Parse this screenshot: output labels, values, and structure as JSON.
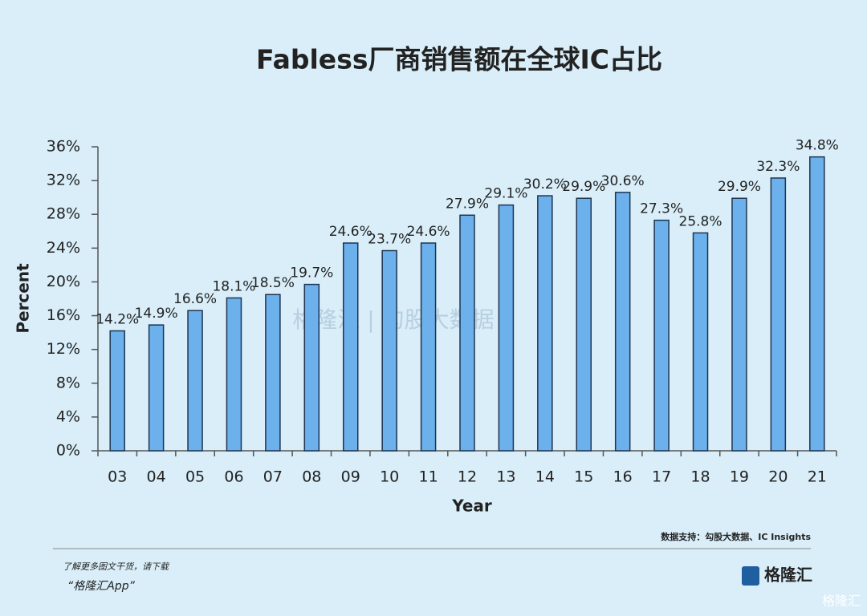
{
  "chart_data": {
    "type": "bar",
    "title": "Fabless厂商销售额在全球IC占比",
    "x_label": "Year",
    "y_label": "Percent",
    "categories": [
      "03",
      "04",
      "05",
      "06",
      "07",
      "08",
      "09",
      "10",
      "11",
      "12",
      "13",
      "14",
      "15",
      "16",
      "17",
      "18",
      "19",
      "20",
      "21"
    ],
    "values": [
      14.2,
      14.9,
      16.6,
      18.1,
      18.5,
      19.7,
      24.6,
      23.7,
      24.6,
      27.9,
      29.1,
      30.2,
      29.9,
      30.6,
      27.3,
      25.8,
      29.9,
      32.3,
      34.8
    ],
    "value_labels": [
      "14.2%",
      "14.9%",
      "16.6%",
      "18.1%",
      "18.5%",
      "19.7%",
      "24.6%",
      "23.7%",
      "24.6%",
      "27.9%",
      "29.1%",
      "30.2%",
      "29.9%",
      "30.6%",
      "27.3%",
      "25.8%",
      "29.9%",
      "32.3%",
      "34.8%"
    ],
    "color": "#6cb0ec",
    "ylim": [
      0,
      36
    ],
    "yticks": [
      {
        "value": 0,
        "label": "0%"
      },
      {
        "value": 4,
        "label": "4%"
      },
      {
        "value": 8,
        "label": "8%"
      },
      {
        "value": 12,
        "label": "12%"
      },
      {
        "value": 16,
        "label": "16%"
      },
      {
        "value": 20,
        "label": "20%"
      },
      {
        "value": 24,
        "label": "24%"
      },
      {
        "value": 28,
        "label": "28%"
      },
      {
        "value": 32,
        "label": "32%"
      },
      {
        "value": 36,
        "label": "36%"
      }
    ],
    "grid": false,
    "source": "数据支持：勾股大数据、IC Insights",
    "footer_note": "了解更多图文干货，请下载",
    "footer_app": "“格隆汇App”",
    "logo": "格隆汇",
    "watermark": "格隆汇 | 勾股大数据",
    "corner_mark": "格隆汇"
  }
}
